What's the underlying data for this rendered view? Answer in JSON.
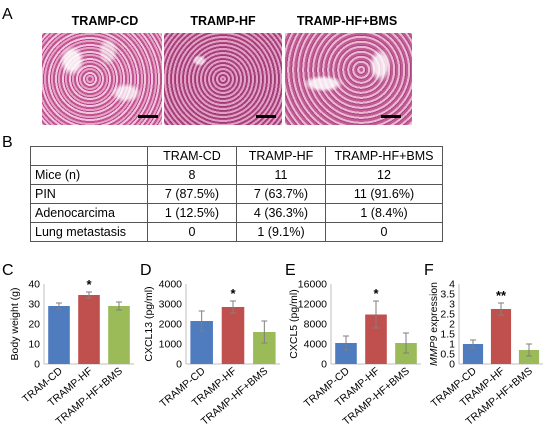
{
  "panel_letters": {
    "a": "A",
    "b": "B",
    "c": "C",
    "d": "D",
    "e": "E",
    "f": "F"
  },
  "images": {
    "left_label": "TRAMP-CD",
    "mid_label": "TRAMP-HF",
    "right_label": "TRAMP-HF+BMS"
  },
  "table": {
    "headers": [
      "",
      "TRAM-CD",
      "TRAMP-HF",
      "TRAMP-HF+BMS"
    ],
    "rows": [
      [
        "Mice (n)",
        "8",
        "11",
        "12"
      ],
      [
        "PIN",
        "7 (87.5%)",
        "7 (63.7%)",
        "11 (91.6%)"
      ],
      [
        "Adenocarcima",
        "1 (12.5%)",
        "4 (36.3%)",
        "1 (8.4%)"
      ],
      [
        "Lung metastasis",
        "0",
        "1 (9.1%)",
        "0"
      ]
    ]
  },
  "colors": {
    "blue": "#4f7bbf",
    "red": "#c0504d",
    "green": "#9bbb59"
  },
  "chart_data": [
    {
      "type": "bar",
      "categories": [
        "TRAM-CD",
        "TRAMP-HF",
        "TRAMP-HF+BMS"
      ],
      "values": [
        29,
        34.5,
        29
      ],
      "errors": [
        1.5,
        1.5,
        2
      ],
      "ylabel": "Body weight (g)",
      "ylim": [
        0,
        40
      ],
      "yticks": [
        "0",
        "10",
        "20",
        "30",
        "40"
      ],
      "significance": {
        "index": 1,
        "text": "*"
      }
    },
    {
      "type": "bar",
      "categories": [
        "TRAMP-CD",
        "TRAMP-HF",
        "TRAMP-HF+BMS"
      ],
      "values": [
        2150,
        2850,
        1600
      ],
      "errors": [
        500,
        300,
        550
      ],
      "ylabel": "CXCL13 (pg/ml)",
      "ylim": [
        0,
        4000
      ],
      "yticks": [
        "0",
        "1000",
        "2000",
        "3000",
        "4000"
      ],
      "significance": {
        "index": 1,
        "text": "*"
      }
    },
    {
      "type": "bar",
      "categories": [
        "TRAMP-CD",
        "TRAMP-HF",
        "TRAMP-HF+BMS"
      ],
      "values": [
        4200,
        9900,
        4200
      ],
      "errors": [
        1400,
        2700,
        2000
      ],
      "ylabel": "CXCL5 (pg/ml)",
      "ylim": [
        0,
        16000
      ],
      "yticks": [
        "0",
        "4000",
        "8000",
        "12000",
        "16000"
      ],
      "significance": {
        "index": 1,
        "text": "*"
      }
    },
    {
      "type": "bar",
      "categories": [
        "TRAMP-CD",
        "TRAMP-HF",
        "TRAMP-HF+BMS"
      ],
      "values": [
        1.0,
        2.75,
        0.7
      ],
      "errors": [
        0.2,
        0.3,
        0.3
      ],
      "ylabel": "MMP9 expression",
      "ylim": [
        0,
        4
      ],
      "yticks": [
        "0",
        "0.5",
        "1",
        "1.5",
        "2",
        "2.5",
        "3",
        "3.5",
        "4"
      ],
      "significance": {
        "index": 1,
        "text": "**"
      }
    }
  ]
}
